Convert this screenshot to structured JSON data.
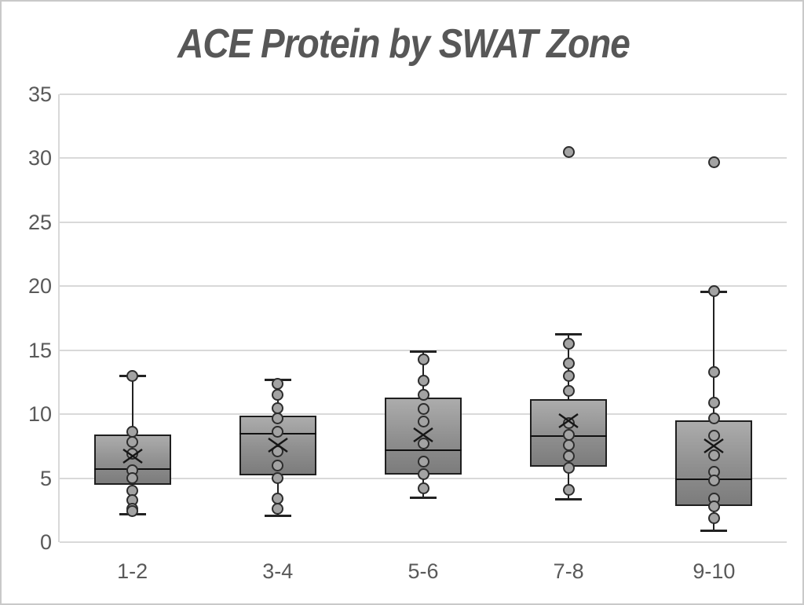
{
  "title": "ACE Protein by SWAT Zone",
  "chart_data": {
    "type": "box",
    "title": "ACE Protein by SWAT Zone",
    "categories": [
      "1-2",
      "3-4",
      "5-6",
      "7-8",
      "9-10"
    ],
    "xlabel": "",
    "ylabel": "",
    "ylim": [
      0,
      35
    ],
    "yticks": [
      0,
      5,
      10,
      15,
      20,
      25,
      30,
      35
    ],
    "grid": true,
    "legend": false,
    "boxes": [
      {
        "category": "1-2",
        "whisker_low": 2.2,
        "q1": 4.5,
        "median": 5.7,
        "q3": 8.4,
        "whisker_high": 13.0,
        "mean": 6.7,
        "outliers": [],
        "data_points": [
          13.0,
          8.6,
          7.8,
          6.9,
          5.6,
          5.0,
          4.0,
          3.3,
          2.6,
          2.4
        ]
      },
      {
        "category": "3-4",
        "whisker_low": 2.1,
        "q1": 5.2,
        "median": 8.5,
        "q3": 9.9,
        "whisker_high": 12.7,
        "mean": 7.6,
        "outliers": [],
        "data_points": [
          12.4,
          11.5,
          10.5,
          9.7,
          8.6,
          7.1,
          6.0,
          5.0,
          3.4,
          2.6
        ]
      },
      {
        "category": "5-6",
        "whisker_low": 3.5,
        "q1": 5.3,
        "median": 7.2,
        "q3": 11.3,
        "whisker_high": 14.9,
        "mean": 8.4,
        "outliers": [],
        "data_points": [
          14.3,
          12.6,
          11.5,
          10.4,
          9.4,
          7.7,
          6.3,
          5.3,
          4.2
        ]
      },
      {
        "category": "7-8",
        "whisker_low": 3.4,
        "q1": 5.9,
        "median": 8.3,
        "q3": 11.2,
        "whisker_high": 16.3,
        "mean": 9.5,
        "outliers": [
          30.5
        ],
        "data_points": [
          15.5,
          14.0,
          13.0,
          11.8,
          9.3,
          8.4,
          7.6,
          6.7,
          5.8,
          4.1
        ]
      },
      {
        "category": "9-10",
        "whisker_low": 0.9,
        "q1": 2.8,
        "median": 4.9,
        "q3": 9.5,
        "whisker_high": 19.6,
        "mean": 7.5,
        "outliers": [
          29.7
        ],
        "data_points": [
          19.6,
          13.3,
          10.9,
          9.7,
          8.3,
          6.8,
          5.5,
          4.8,
          3.4,
          2.8,
          1.9
        ]
      }
    ]
  },
  "colors": {
    "background": "#ffffff",
    "frame_border": "#c9c9c9",
    "title": "#575757",
    "axis_label": "#595959",
    "gridline": "#d9d9d9",
    "box_border": "#1f1f1f",
    "box_fill_light": "#acacac",
    "box_fill_dark": "#7c7c7c",
    "dot_fill": "#a3a3a3",
    "dot_border": "#2d2d2d",
    "mean_marker": "#161616"
  }
}
